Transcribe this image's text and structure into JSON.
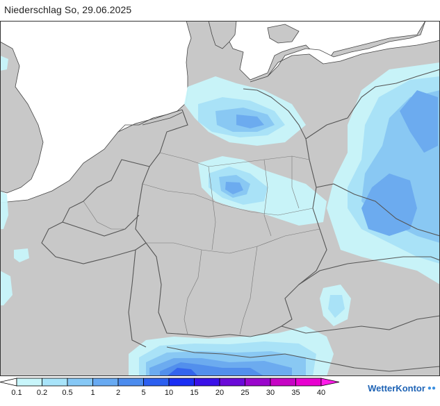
{
  "header": {
    "title": "Niederschlag So, 29.06.2025"
  },
  "legend": {
    "labels": [
      "0.1",
      "0.2",
      "0.5",
      "1",
      "2",
      "5",
      "10",
      "15",
      "20",
      "25",
      "30",
      "35",
      "40"
    ],
    "colors": [
      "#ffffff",
      "#c8f6fb",
      "#a8e4fa",
      "#86c8f6",
      "#68aaf2",
      "#4c8cee",
      "#2c5ff0",
      "#1a2ef4",
      "#3a10e8",
      "#6a0ad8",
      "#9a06cc",
      "#c604c4",
      "#e800d0",
      "#ff1ce8"
    ]
  },
  "map": {
    "land_color": "#c8c8c8",
    "sea_color": "#ffffff",
    "border_color": "#555555"
  },
  "logo": {
    "text": "WetterKontor",
    "drops": "💧"
  }
}
